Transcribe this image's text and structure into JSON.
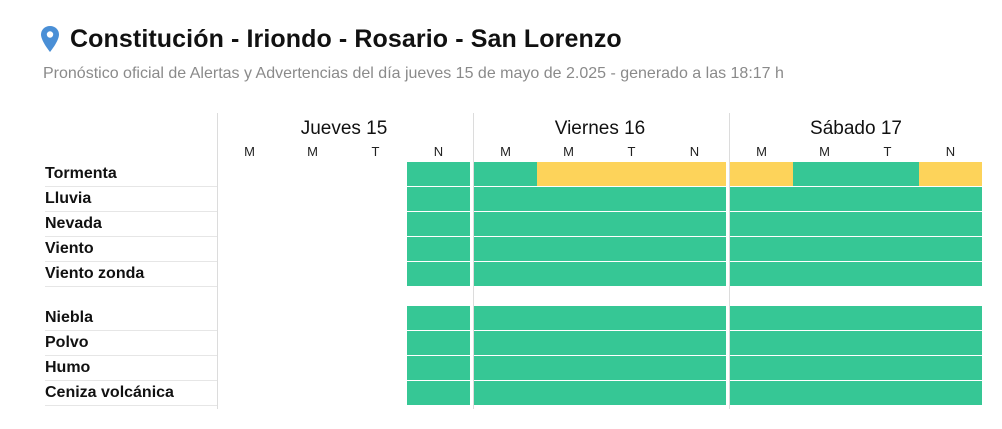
{
  "header": {
    "title": "Constitución - Iriondo - Rosario - San Lorenzo",
    "subtitle": "Pronóstico oficial de Alertas y Advertencias del día jueves 15 de mayo de 2.025 - generado a las 18:17 h",
    "pin_color": "#4a8fd6"
  },
  "days": [
    {
      "title": "Jueves 15",
      "periods": [
        "M",
        "M",
        "T",
        "N"
      ]
    },
    {
      "title": "Viernes 16",
      "periods": [
        "M",
        "M",
        "T",
        "N"
      ]
    },
    {
      "title": "Sábado 17",
      "periods": [
        "M",
        "M",
        "T",
        "N"
      ]
    }
  ],
  "rows": [
    {
      "label": "Tormenta"
    },
    {
      "label": "Lluvia"
    },
    {
      "label": "Nevada"
    },
    {
      "label": "Viento"
    },
    {
      "label": "Viento zonda"
    },
    {
      "label": "Niebla"
    },
    {
      "label": "Polvo"
    },
    {
      "label": "Humo"
    },
    {
      "label": "Ceniza volcánica"
    }
  ],
  "status_grid": [
    [
      "none",
      "none",
      "none",
      "green",
      "green",
      "yellow",
      "yellow",
      "yellow",
      "yellow",
      "green",
      "green",
      "yellow"
    ],
    [
      "none",
      "none",
      "none",
      "green",
      "green",
      "green",
      "green",
      "green",
      "green",
      "green",
      "green",
      "green"
    ],
    [
      "none",
      "none",
      "none",
      "green",
      "green",
      "green",
      "green",
      "green",
      "green",
      "green",
      "green",
      "green"
    ],
    [
      "none",
      "none",
      "none",
      "green",
      "green",
      "green",
      "green",
      "green",
      "green",
      "green",
      "green",
      "green"
    ],
    [
      "none",
      "none",
      "none",
      "green",
      "green",
      "green",
      "green",
      "green",
      "green",
      "green",
      "green",
      "green"
    ],
    [
      "none",
      "none",
      "none",
      "green",
      "green",
      "green",
      "green",
      "green",
      "green",
      "green",
      "green",
      "green"
    ],
    [
      "none",
      "none",
      "none",
      "green",
      "green",
      "green",
      "green",
      "green",
      "green",
      "green",
      "green",
      "green"
    ],
    [
      "none",
      "none",
      "none",
      "green",
      "green",
      "green",
      "green",
      "green",
      "green",
      "green",
      "green",
      "green"
    ],
    [
      "none",
      "none",
      "none",
      "green",
      "green",
      "green",
      "green",
      "green",
      "green",
      "green",
      "green",
      "green"
    ]
  ],
  "colors": {
    "green": "#36c795",
    "yellow": "#fdd35a"
  }
}
